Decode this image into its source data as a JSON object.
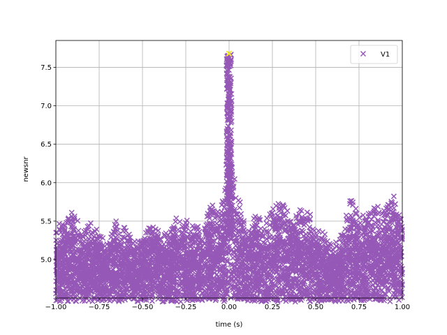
{
  "chart_data": {
    "type": "scatter",
    "title": "",
    "xlabel": "time (s)",
    "ylabel": "newsnr",
    "xlim": [
      -1.0,
      1.0
    ],
    "ylim": [
      4.5,
      7.85
    ],
    "grid": true,
    "legend_position": "top-right",
    "x_ticks": [
      -1.0,
      -0.75,
      -0.5,
      -0.25,
      0.0,
      0.25,
      0.5,
      0.75,
      1.0
    ],
    "x_tick_labels": [
      "−1.00",
      "−0.75",
      "−0.50",
      "−0.25",
      "0.00",
      "0.25",
      "0.50",
      "0.75",
      "1.00"
    ],
    "y_ticks": [
      5.0,
      5.5,
      6.0,
      6.5,
      7.0,
      7.5
    ],
    "y_tick_labels": [
      "5.0",
      "5.5",
      "6.0",
      "6.5",
      "7.0",
      "7.5"
    ],
    "series": [
      {
        "name": "V1",
        "color": "#9558b7",
        "marker": "x",
        "envelope": [
          {
            "x": -1.0,
            "y": 5.45
          },
          {
            "x": -0.95,
            "y": 5.5
          },
          {
            "x": -0.9,
            "y": 5.65
          },
          {
            "x": -0.85,
            "y": 5.4
          },
          {
            "x": -0.8,
            "y": 5.5
          },
          {
            "x": -0.75,
            "y": 5.35
          },
          {
            "x": -0.7,
            "y": 5.25
          },
          {
            "x": -0.65,
            "y": 5.55
          },
          {
            "x": -0.6,
            "y": 5.45
          },
          {
            "x": -0.55,
            "y": 5.25
          },
          {
            "x": -0.5,
            "y": 5.3
          },
          {
            "x": -0.45,
            "y": 5.5
          },
          {
            "x": -0.4,
            "y": 5.35
          },
          {
            "x": -0.35,
            "y": 5.4
          },
          {
            "x": -0.3,
            "y": 5.6
          },
          {
            "x": -0.25,
            "y": 5.55
          },
          {
            "x": -0.2,
            "y": 5.45
          },
          {
            "x": -0.15,
            "y": 5.5
          },
          {
            "x": -0.1,
            "y": 5.75
          },
          {
            "x": -0.05,
            "y": 5.65
          },
          {
            "x": -0.02,
            "y": 6.0
          },
          {
            "x": 0.0,
            "y": 7.6
          },
          {
            "x": 0.02,
            "y": 6.3
          },
          {
            "x": 0.05,
            "y": 5.9
          },
          {
            "x": 0.1,
            "y": 5.35
          },
          {
            "x": 0.15,
            "y": 5.6
          },
          {
            "x": 0.2,
            "y": 5.55
          },
          {
            "x": 0.25,
            "y": 5.65
          },
          {
            "x": 0.3,
            "y": 5.8
          },
          {
            "x": 0.35,
            "y": 5.6
          },
          {
            "x": 0.4,
            "y": 5.65
          },
          {
            "x": 0.45,
            "y": 5.7
          },
          {
            "x": 0.5,
            "y": 5.45
          },
          {
            "x": 0.55,
            "y": 5.35
          },
          {
            "x": 0.6,
            "y": 5.2
          },
          {
            "x": 0.65,
            "y": 5.35
          },
          {
            "x": 0.7,
            "y": 5.8
          },
          {
            "x": 0.75,
            "y": 5.65
          },
          {
            "x": 0.8,
            "y": 5.6
          },
          {
            "x": 0.85,
            "y": 5.7
          },
          {
            "x": 0.9,
            "y": 5.65
          },
          {
            "x": 0.95,
            "y": 5.85
          },
          {
            "x": 1.0,
            "y": 5.5
          }
        ],
        "peak": {
          "x": 0.0,
          "y": 7.68
        }
      }
    ],
    "highlight_point": {
      "x": 0.0,
      "y": 7.68,
      "color": "#f5e62a",
      "marker": "x"
    }
  }
}
